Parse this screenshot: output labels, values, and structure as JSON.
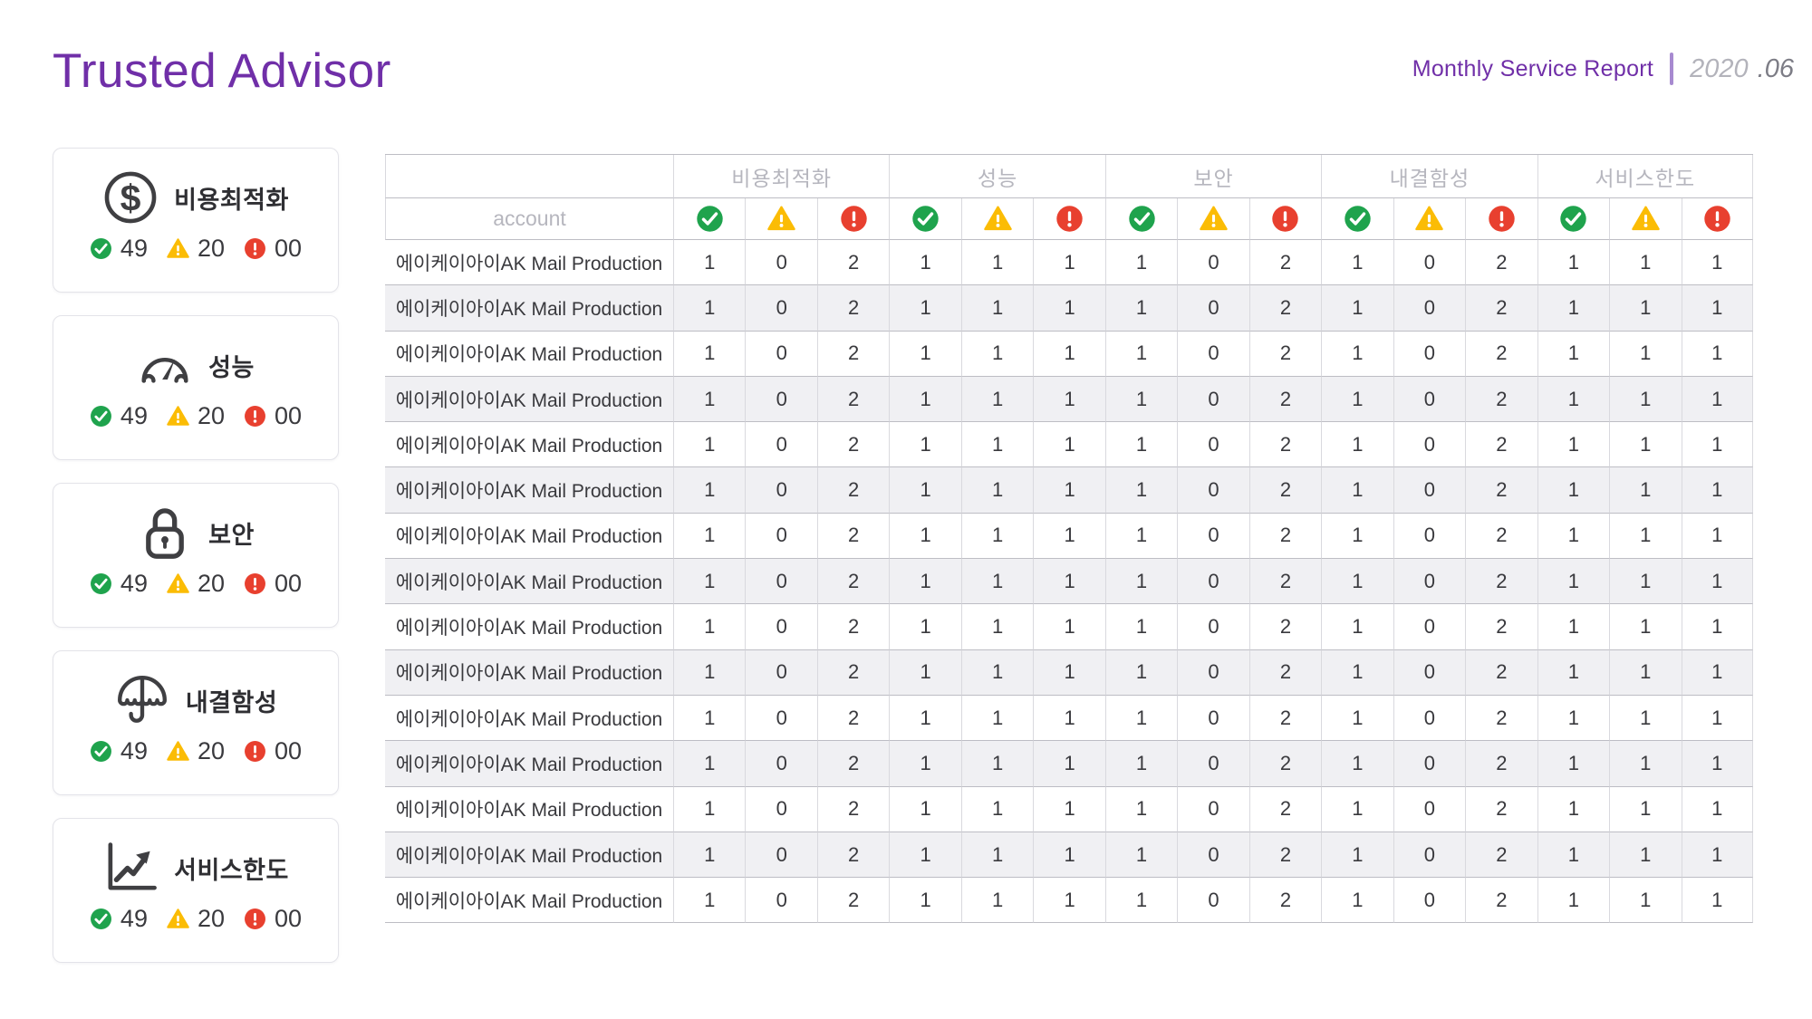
{
  "header": {
    "title": "Trusted Advisor",
    "report_label": "Monthly Service Report",
    "period_year": "2020",
    "period_month": ".06"
  },
  "colors": {
    "brand_purple": "#702fa8",
    "ok_green": "#1fa34d",
    "warn_yellow": "#fbbc05",
    "error_red": "#e8402f"
  },
  "icons": {
    "ok": "check-circle-icon",
    "warn": "warning-triangle-icon",
    "error": "error-circle-icon"
  },
  "summary_cards": [
    {
      "id": "cost-optimization",
      "icon": "dollar-circle-icon",
      "glyph": "dollar",
      "label": "비용최적화",
      "ok": "49",
      "warn": "20",
      "error": "00"
    },
    {
      "id": "performance",
      "icon": "gauge-icon",
      "glyph": "gauge",
      "label": "성능",
      "ok": "49",
      "warn": "20",
      "error": "00"
    },
    {
      "id": "security",
      "icon": "lock-icon",
      "glyph": "lock",
      "label": "보안",
      "ok": "49",
      "warn": "20",
      "error": "00"
    },
    {
      "id": "fault-tolerance",
      "icon": "umbrella-icon",
      "glyph": "umbrella",
      "label": "내결함성",
      "ok": "49",
      "warn": "20",
      "error": "00"
    },
    {
      "id": "service-limits",
      "icon": "trend-chart-icon",
      "glyph": "trend",
      "label": "서비스한도",
      "ok": "49",
      "warn": "20",
      "error": "00"
    }
  ],
  "table": {
    "account_header": "account",
    "groups": [
      "비용최적화",
      "성능",
      "보안",
      "내결함성",
      "서비스한도"
    ],
    "status_icons": [
      "ok",
      "warn",
      "error"
    ],
    "rows": [
      {
        "account": "에이케이아이AK Mail Production",
        "values": [
          1,
          0,
          2,
          1,
          1,
          1,
          1,
          0,
          2,
          1,
          0,
          2,
          1,
          1,
          1
        ]
      },
      {
        "account": "에이케이아이AK Mail Production",
        "values": [
          1,
          0,
          2,
          1,
          1,
          1,
          1,
          0,
          2,
          1,
          0,
          2,
          1,
          1,
          1
        ]
      },
      {
        "account": "에이케이아이AK Mail Production",
        "values": [
          1,
          0,
          2,
          1,
          1,
          1,
          1,
          0,
          2,
          1,
          0,
          2,
          1,
          1,
          1
        ]
      },
      {
        "account": "에이케이아이AK Mail Production",
        "values": [
          1,
          0,
          2,
          1,
          1,
          1,
          1,
          0,
          2,
          1,
          0,
          2,
          1,
          1,
          1
        ]
      },
      {
        "account": "에이케이아이AK Mail Production",
        "values": [
          1,
          0,
          2,
          1,
          1,
          1,
          1,
          0,
          2,
          1,
          0,
          2,
          1,
          1,
          1
        ]
      },
      {
        "account": "에이케이아이AK Mail Production",
        "values": [
          1,
          0,
          2,
          1,
          1,
          1,
          1,
          0,
          2,
          1,
          0,
          2,
          1,
          1,
          1
        ]
      },
      {
        "account": "에이케이아이AK Mail Production",
        "values": [
          1,
          0,
          2,
          1,
          1,
          1,
          1,
          0,
          2,
          1,
          0,
          2,
          1,
          1,
          1
        ]
      },
      {
        "account": "에이케이아이AK Mail Production",
        "values": [
          1,
          0,
          2,
          1,
          1,
          1,
          1,
          0,
          2,
          1,
          0,
          2,
          1,
          1,
          1
        ]
      },
      {
        "account": "에이케이아이AK Mail Production",
        "values": [
          1,
          0,
          2,
          1,
          1,
          1,
          1,
          0,
          2,
          1,
          0,
          2,
          1,
          1,
          1
        ]
      },
      {
        "account": "에이케이아이AK Mail Production",
        "values": [
          1,
          0,
          2,
          1,
          1,
          1,
          1,
          0,
          2,
          1,
          0,
          2,
          1,
          1,
          1
        ]
      },
      {
        "account": "에이케이아이AK Mail Production",
        "values": [
          1,
          0,
          2,
          1,
          1,
          1,
          1,
          0,
          2,
          1,
          0,
          2,
          1,
          1,
          1
        ]
      },
      {
        "account": "에이케이아이AK Mail Production",
        "values": [
          1,
          0,
          2,
          1,
          1,
          1,
          1,
          0,
          2,
          1,
          0,
          2,
          1,
          1,
          1
        ]
      },
      {
        "account": "에이케이아이AK Mail Production",
        "values": [
          1,
          0,
          2,
          1,
          1,
          1,
          1,
          0,
          2,
          1,
          0,
          2,
          1,
          1,
          1
        ]
      },
      {
        "account": "에이케이아이AK Mail Production",
        "values": [
          1,
          0,
          2,
          1,
          1,
          1,
          1,
          0,
          2,
          1,
          0,
          2,
          1,
          1,
          1
        ]
      },
      {
        "account": "에이케이아이AK Mail Production",
        "values": [
          1,
          0,
          2,
          1,
          1,
          1,
          1,
          0,
          2,
          1,
          0,
          2,
          1,
          1,
          1
        ]
      }
    ]
  }
}
